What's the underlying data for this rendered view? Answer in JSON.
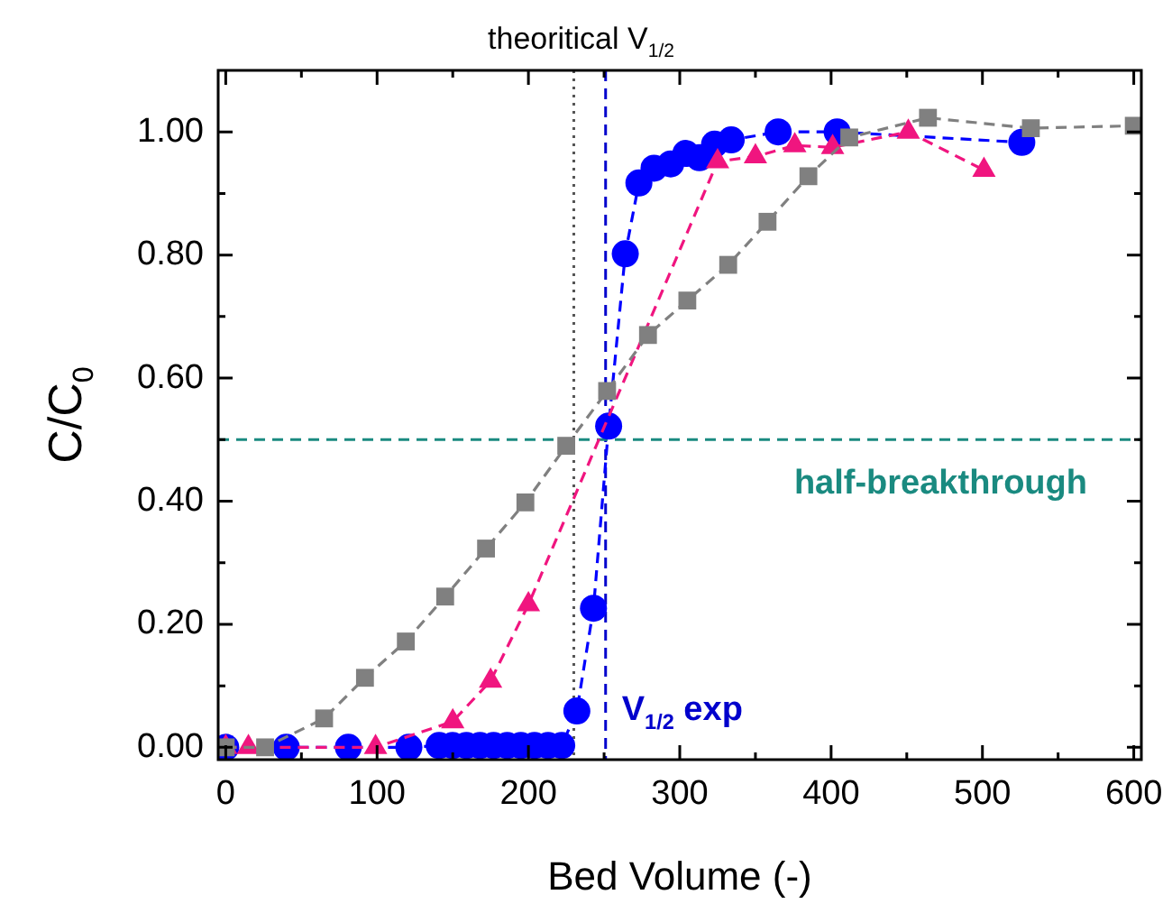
{
  "chart_data": {
    "type": "line",
    "xlabel": "Bed Volume (-)",
    "ylabel": "C/C$_{0}$",
    "xlim": [
      -5,
      605
    ],
    "ylim": [
      -0.02,
      1.1
    ],
    "xticks": [
      0,
      {
        "value": 50,
        "label": null
      },
      100,
      {
        "value": 150,
        "label": null
      },
      200,
      {
        "value": 250,
        "label": null
      },
      300,
      {
        "value": 350,
        "label": null
      },
      400,
      {
        "value": 450,
        "label": null
      },
      500,
      {
        "value": 550,
        "label": null
      },
      600
    ],
    "yticks": [
      {
        "value": 0,
        "label": "0.00"
      },
      {
        "value": 0.1,
        "label": null
      },
      {
        "value": 0.2,
        "label": "0.20"
      },
      {
        "value": 0.3,
        "label": null
      },
      {
        "value": 0.4,
        "label": "0.40"
      },
      {
        "value": 0.5,
        "label": null
      },
      {
        "value": 0.6,
        "label": "0.60"
      },
      {
        "value": 0.7,
        "label": null
      },
      {
        "value": 0.8,
        "label": "0.80"
      },
      {
        "value": 0.9,
        "label": null
      },
      {
        "value": 1.0,
        "label": "1.00"
      }
    ],
    "grid": false,
    "legend": false,
    "line_style": "dashed",
    "series": [
      {
        "color": "#808080",
        "marker": "square",
        "x": [
          0,
          26,
          65,
          92,
          119,
          145,
          172,
          198,
          225,
          252,
          279,
          305,
          332,
          358,
          385,
          412,
          464,
          532,
          600
        ],
        "values": [
          0,
          0,
          0.047,
          0.113,
          0.172,
          0.245,
          0.323,
          0.398,
          0.49,
          0.579,
          0.67,
          0.726,
          0.784,
          0.854,
          0.928,
          0.991,
          1.023,
          1.006,
          1.01
        ]
      },
      {
        "color": "#f0157f",
        "marker": "triangle",
        "x": [
          0,
          15,
          99,
          150,
          175,
          200,
          325,
          350,
          376,
          401,
          451,
          501
        ],
        "values": [
          0,
          0,
          0,
          0.042,
          0.108,
          0.232,
          0.952,
          0.96,
          0.978,
          0.975,
          1.0,
          0.938
        ]
      },
      {
        "color": "#0000ff",
        "marker": "circle",
        "x": [
          0,
          40,
          81,
          121,
          141,
          150,
          159,
          168,
          177,
          186,
          195,
          204,
          213,
          222,
          232,
          243,
          253,
          264,
          273,
          283,
          294,
          304,
          313,
          323,
          334,
          365,
          404,
          526
        ],
        "values": [
          0,
          0,
          0,
          0,
          0.003,
          0.003,
          0.003,
          0.003,
          0.003,
          0.003,
          0.003,
          0.003,
          0.003,
          0.003,
          0.059,
          0.226,
          0.522,
          0.802,
          0.917,
          0.941,
          0.948,
          0.965,
          0.958,
          0.98,
          0.987,
          1.0,
          1.0,
          0.983
        ]
      }
    ],
    "ref_lines": [
      {
        "axis": "x",
        "value": 230,
        "label": "theoritical V$_{1/2}$",
        "color": "#555555",
        "line_style": "dotted"
      },
      {
        "axis": "x",
        "value": 251,
        "label": "V$_{1/2}$ exp",
        "color": "#0000cc",
        "line_style": "dashed"
      },
      {
        "axis": "y",
        "value": 0.5,
        "label": "half-breakthrough",
        "color": "#1a8a80",
        "line_style": "dashed"
      }
    ]
  }
}
